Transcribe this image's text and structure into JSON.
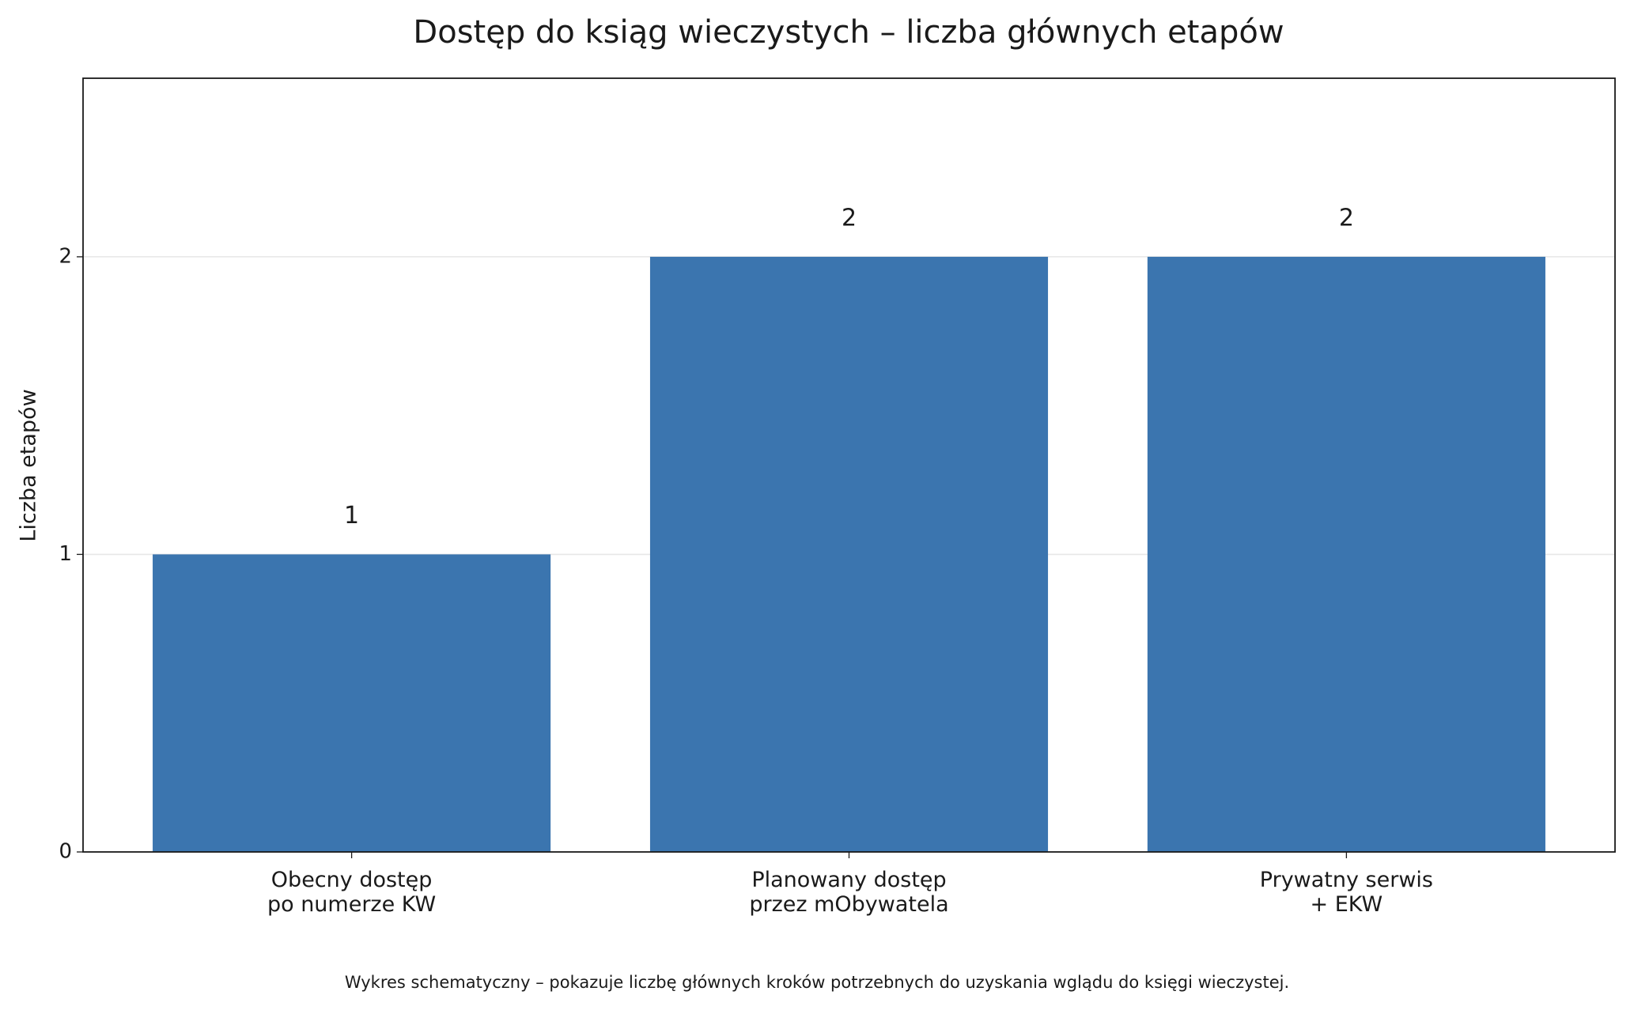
{
  "chart_data": {
    "type": "bar",
    "title": "Dostęp do ksiąg wieczystych – liczba głównych etapów",
    "y_label": "Liczba etapów",
    "footnote": "Wykres schematyczny – pokazuje liczbę głównych kroków potrzebnych do uzyskania wglądu do księgi wieczystej.",
    "categories": [
      "Obecny dostęp\npo numerze KW",
      "Planowany dostęp\nprzez mObywatela",
      "Prywatny serwis\n+ EKW"
    ],
    "values": [
      1,
      2,
      2
    ],
    "color": "#3b75af",
    "ylim": [
      0,
      2.6
    ],
    "yticks": [
      0,
      1,
      2
    ],
    "grid": true
  }
}
